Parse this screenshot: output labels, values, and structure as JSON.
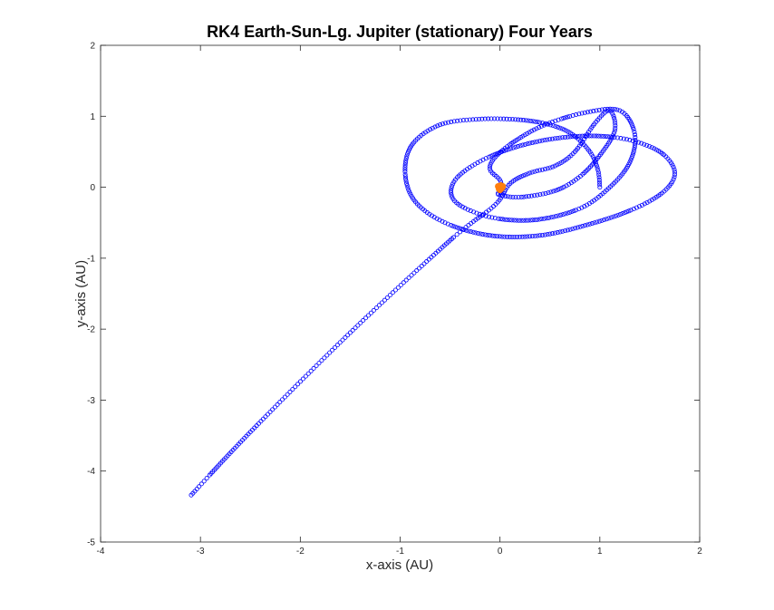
{
  "chart_data": {
    "type": "scatter",
    "title": "RK4 Earth-Sun-Lg. Jupiter (stationary) Four Years",
    "xlabel": "x-axis (AU)",
    "ylabel": "y-axis (AU)",
    "xlim": [
      -4,
      2
    ],
    "ylim": [
      -5,
      2
    ],
    "xticks": [
      "-4",
      "-3",
      "-2",
      "-1",
      "0",
      "1",
      "2"
    ],
    "yticks": [
      "-5",
      "-4",
      "-3",
      "-2",
      "-1",
      "0",
      "1",
      "2"
    ],
    "grid": false,
    "colors": {
      "trajectory": "#0000ff",
      "sun": "#ff7f0e",
      "axes": "#262626"
    },
    "series": [
      {
        "marker": "open-circle",
        "keypoints": [
          [
            1.0,
            0.0
          ],
          [
            0.98,
            0.25
          ],
          [
            0.9,
            0.5
          ],
          [
            0.72,
            0.75
          ],
          [
            0.5,
            0.88
          ],
          [
            0.2,
            0.95
          ],
          [
            -0.2,
            0.96
          ],
          [
            -0.6,
            0.88
          ],
          [
            -0.88,
            0.6
          ],
          [
            -0.95,
            0.2
          ],
          [
            -0.85,
            -0.2
          ],
          [
            -0.55,
            -0.5
          ],
          [
            -0.1,
            -0.68
          ],
          [
            0.4,
            -0.68
          ],
          [
            0.9,
            -0.52
          ],
          [
            1.35,
            -0.3
          ],
          [
            1.65,
            -0.05
          ],
          [
            1.75,
            0.22
          ],
          [
            1.6,
            0.5
          ],
          [
            1.25,
            0.68
          ],
          [
            0.8,
            0.72
          ],
          [
            0.3,
            0.62
          ],
          [
            -0.15,
            0.4
          ],
          [
            -0.45,
            0.1
          ],
          [
            -0.45,
            -0.2
          ],
          [
            -0.1,
            -0.42
          ],
          [
            0.35,
            -0.46
          ],
          [
            0.8,
            -0.3
          ],
          [
            1.1,
            0.0
          ],
          [
            1.3,
            0.35
          ],
          [
            1.35,
            0.75
          ],
          [
            1.2,
            1.08
          ],
          [
            0.85,
            1.05
          ],
          [
            0.45,
            0.88
          ],
          [
            0.15,
            0.65
          ],
          [
            -0.05,
            0.42
          ],
          [
            -0.1,
            0.25
          ],
          [
            0.0,
            0.1
          ],
          [
            0.02,
            -0.05
          ],
          [
            -0.02,
            -0.1
          ],
          [
            0.2,
            -0.14
          ],
          [
            0.55,
            -0.05
          ],
          [
            0.8,
            0.15
          ],
          [
            1.0,
            0.45
          ],
          [
            1.15,
            0.8
          ],
          [
            1.1,
            1.08
          ],
          [
            0.95,
            0.9
          ],
          [
            0.75,
            0.5
          ],
          [
            0.55,
            0.3
          ],
          [
            0.3,
            0.2
          ],
          [
            0.1,
            0.05
          ],
          [
            -0.05,
            -0.25
          ],
          [
            -0.5,
            -0.75
          ],
          [
            -1.5,
            -2.05
          ],
          [
            -2.5,
            -3.45
          ],
          [
            -3.1,
            -4.35
          ]
        ]
      }
    ],
    "sun": {
      "x": 0.0,
      "y": 0.0
    }
  }
}
